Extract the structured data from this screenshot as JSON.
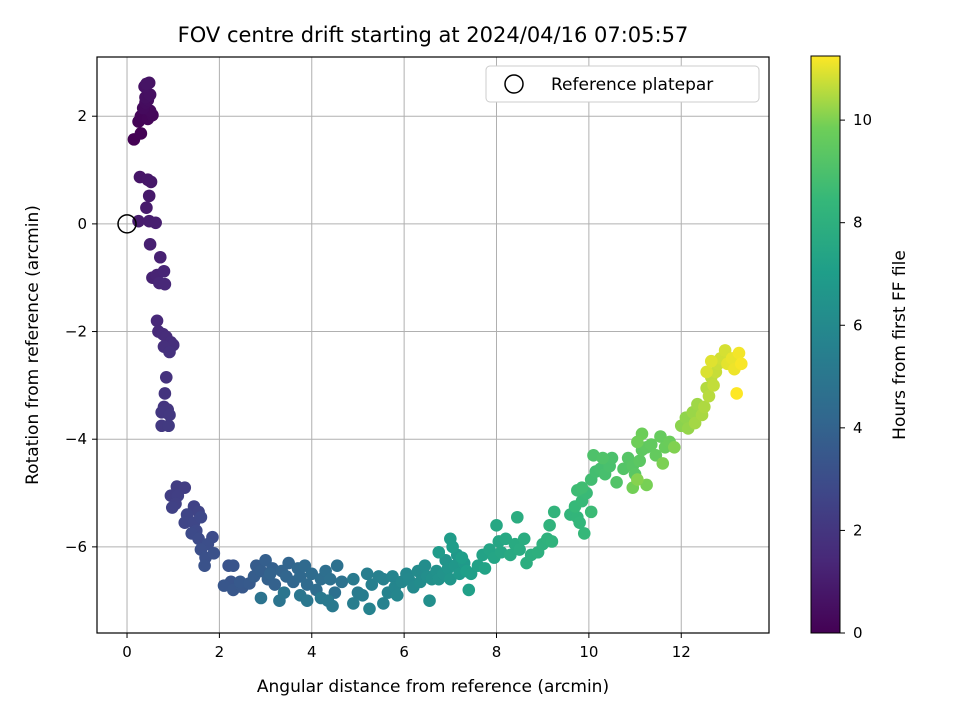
{
  "chart_data": {
    "type": "scatter",
    "title": "FOV centre drift starting at 2024/04/16 07:05:57",
    "xlabel": "Angular distance from reference (arcmin)",
    "ylabel": "Rotation from reference (arcmin)",
    "xlim": [
      -0.65,
      13.9
    ],
    "ylim": [
      -7.6,
      3.1
    ],
    "xticks": [
      0,
      2,
      4,
      6,
      8,
      10,
      12
    ],
    "yticks": [
      -6,
      -4,
      -2,
      0,
      2
    ],
    "grid": true,
    "colormap": "viridis",
    "colorbar": {
      "label": "Hours from first FF file",
      "min": 0,
      "max": 11.25,
      "ticks": [
        0,
        2,
        4,
        6,
        8,
        10
      ]
    },
    "reference": {
      "label": "Reference platepar",
      "x": 0,
      "y": 0,
      "marker": "open-circle"
    },
    "legend": {
      "loc": "upper right",
      "entries": [
        "Reference platepar"
      ]
    },
    "series": [
      {
        "points": [
          [
            0.15,
            1.57
          ],
          [
            0.3,
            1.68
          ],
          [
            0.25,
            1.9
          ],
          [
            0.3,
            2.0
          ],
          [
            0.45,
            1.95
          ],
          [
            0.55,
            2.02
          ],
          [
            0.5,
            2.1
          ],
          [
            0.35,
            2.15
          ],
          [
            0.4,
            2.25
          ],
          [
            0.45,
            2.3
          ],
          [
            0.4,
            2.35
          ],
          [
            0.5,
            2.4
          ],
          [
            0.38,
            2.55
          ],
          [
            0.48,
            2.62
          ],
          [
            0.42,
            2.6
          ],
          [
            0.28,
            0.87
          ],
          [
            0.45,
            0.82
          ],
          [
            0.52,
            0.78
          ],
          [
            0.48,
            0.52
          ],
          [
            0.42,
            0.3
          ],
          [
            0.25,
            0.05
          ],
          [
            0.48,
            0.05
          ],
          [
            0.62,
            0.02
          ],
          [
            0.5,
            -0.38
          ],
          [
            0.72,
            -0.62
          ],
          [
            0.55,
            -1.0
          ],
          [
            0.65,
            -0.95
          ],
          [
            0.8,
            -0.88
          ],
          [
            0.7,
            -1.1
          ],
          [
            0.82,
            -1.12
          ],
          [
            0.65,
            -1.8
          ],
          [
            0.68,
            -2.0
          ],
          [
            0.78,
            -2.05
          ],
          [
            0.85,
            -2.1
          ],
          [
            0.95,
            -2.2
          ],
          [
            1.0,
            -2.25
          ],
          [
            0.8,
            -2.28
          ],
          [
            0.92,
            -2.38
          ],
          [
            0.85,
            -2.85
          ],
          [
            0.82,
            -3.15
          ],
          [
            0.8,
            -3.4
          ],
          [
            0.88,
            -3.45
          ],
          [
            0.75,
            -3.5
          ],
          [
            0.92,
            -3.55
          ],
          [
            0.75,
            -3.75
          ],
          [
            0.9,
            -3.75
          ],
          [
            1.08,
            -4.88
          ],
          [
            1.25,
            -4.9
          ],
          [
            0.95,
            -5.05
          ],
          [
            1.1,
            -5.05
          ],
          [
            1.05,
            -5.2
          ],
          [
            0.98,
            -5.27
          ],
          [
            1.45,
            -5.25
          ],
          [
            1.55,
            -5.35
          ],
          [
            1.3,
            -5.4
          ],
          [
            1.25,
            -5.55
          ],
          [
            1.45,
            -5.55
          ],
          [
            1.6,
            -5.45
          ],
          [
            1.5,
            -5.7
          ],
          [
            1.4,
            -5.75
          ],
          [
            1.55,
            -5.85
          ],
          [
            1.85,
            -5.82
          ],
          [
            1.75,
            -5.95
          ],
          [
            1.6,
            -6.05
          ],
          [
            1.7,
            -6.2
          ],
          [
            1.88,
            -6.12
          ],
          [
            1.68,
            -6.35
          ],
          [
            2.2,
            -6.35
          ],
          [
            2.3,
            -6.35
          ],
          [
            2.25,
            -6.65
          ],
          [
            2.1,
            -6.72
          ],
          [
            2.3,
            -6.8
          ],
          [
            2.5,
            -6.75
          ],
          [
            2.45,
            -6.65
          ],
          [
            2.65,
            -6.68
          ],
          [
            2.8,
            -6.35
          ],
          [
            2.75,
            -6.55
          ],
          [
            2.9,
            -6.45
          ],
          [
            3.0,
            -6.25
          ],
          [
            3.15,
            -6.4
          ],
          [
            3.05,
            -6.6
          ],
          [
            3.2,
            -6.7
          ],
          [
            3.1,
            -6.5
          ],
          [
            3.35,
            -6.45
          ],
          [
            3.5,
            -6.3
          ],
          [
            3.45,
            -6.55
          ],
          [
            3.6,
            -6.65
          ],
          [
            3.7,
            -6.4
          ],
          [
            3.75,
            -6.55
          ],
          [
            3.85,
            -6.35
          ],
          [
            3.9,
            -6.7
          ],
          [
            4.0,
            -6.5
          ],
          [
            4.1,
            -6.8
          ],
          [
            4.2,
            -6.6
          ],
          [
            4.3,
            -6.45
          ],
          [
            4.4,
            -6.6
          ],
          [
            4.5,
            -6.85
          ],
          [
            4.55,
            -6.35
          ],
          [
            4.65,
            -6.65
          ],
          [
            2.9,
            -6.95
          ],
          [
            3.3,
            -7.0
          ],
          [
            3.4,
            -6.85
          ],
          [
            3.75,
            -6.9
          ],
          [
            3.9,
            -7.0
          ],
          [
            4.2,
            -6.95
          ],
          [
            4.35,
            -7.0
          ],
          [
            4.45,
            -7.1
          ],
          [
            4.9,
            -6.6
          ],
          [
            5.0,
            -6.85
          ],
          [
            5.1,
            -6.9
          ],
          [
            4.9,
            -7.05
          ],
          [
            5.2,
            -6.5
          ],
          [
            5.3,
            -6.7
          ],
          [
            5.45,
            -6.55
          ],
          [
            5.55,
            -6.6
          ],
          [
            5.25,
            -7.15
          ],
          [
            5.55,
            -7.05
          ],
          [
            5.65,
            -6.85
          ],
          [
            5.75,
            -6.55
          ],
          [
            5.8,
            -6.75
          ],
          [
            5.85,
            -6.9
          ],
          [
            5.95,
            -6.65
          ],
          [
            6.05,
            -6.5
          ],
          [
            6.1,
            -6.6
          ],
          [
            6.2,
            -6.75
          ],
          [
            6.3,
            -6.45
          ],
          [
            6.35,
            -6.65
          ],
          [
            6.45,
            -6.35
          ],
          [
            6.5,
            -6.55
          ],
          [
            6.55,
            -7.0
          ],
          [
            6.6,
            -6.6
          ],
          [
            6.7,
            -6.45
          ],
          [
            6.75,
            -6.6
          ],
          [
            6.85,
            -6.5
          ],
          [
            6.9,
            -6.25
          ],
          [
            6.95,
            -6.4
          ],
          [
            7.0,
            -6.6
          ],
          [
            7.1,
            -6.35
          ],
          [
            7.15,
            -6.15
          ],
          [
            7.2,
            -6.5
          ],
          [
            7.3,
            -6.3
          ],
          [
            6.75,
            -6.1
          ],
          [
            7.0,
            -5.85
          ],
          [
            7.05,
            -6.0
          ],
          [
            7.25,
            -6.2
          ],
          [
            7.35,
            -6.45
          ],
          [
            7.45,
            -6.5
          ],
          [
            7.4,
            -6.8
          ],
          [
            7.6,
            -6.35
          ],
          [
            7.7,
            -6.15
          ],
          [
            7.75,
            -6.4
          ],
          [
            7.85,
            -6.05
          ],
          [
            7.95,
            -6.2
          ],
          [
            8.05,
            -5.9
          ],
          [
            8.1,
            -6.1
          ],
          [
            8.0,
            -5.6
          ],
          [
            8.2,
            -5.85
          ],
          [
            8.3,
            -6.15
          ],
          [
            8.4,
            -5.95
          ],
          [
            8.5,
            -6.05
          ],
          [
            8.6,
            -5.85
          ],
          [
            8.45,
            -5.45
          ],
          [
            8.65,
            -6.3
          ],
          [
            8.75,
            -6.15
          ],
          [
            8.9,
            -6.1
          ],
          [
            9.0,
            -5.95
          ],
          [
            9.1,
            -5.85
          ],
          [
            9.2,
            -5.9
          ],
          [
            9.15,
            -5.6
          ],
          [
            9.25,
            -5.35
          ],
          [
            9.6,
            -5.4
          ],
          [
            9.75,
            -5.45
          ],
          [
            9.8,
            -5.55
          ],
          [
            9.9,
            -5.75
          ],
          [
            9.7,
            -5.25
          ],
          [
            9.85,
            -5.15
          ],
          [
            9.95,
            -5.0
          ],
          [
            10.05,
            -5.35
          ],
          [
            9.75,
            -4.95
          ],
          [
            9.85,
            -4.9
          ],
          [
            10.05,
            -4.75
          ],
          [
            10.15,
            -4.6
          ],
          [
            10.25,
            -4.55
          ],
          [
            10.35,
            -4.65
          ],
          [
            10.45,
            -4.5
          ],
          [
            10.5,
            -4.35
          ],
          [
            10.1,
            -4.3
          ],
          [
            10.3,
            -4.35
          ],
          [
            10.6,
            -4.8
          ],
          [
            10.75,
            -4.55
          ],
          [
            10.85,
            -4.35
          ],
          [
            10.95,
            -4.5
          ],
          [
            11.0,
            -4.65
          ],
          [
            11.1,
            -4.4
          ],
          [
            11.15,
            -4.2
          ],
          [
            11.25,
            -4.15
          ],
          [
            11.35,
            -4.1
          ],
          [
            11.45,
            -4.3
          ],
          [
            11.55,
            -3.95
          ],
          [
            11.65,
            -4.15
          ],
          [
            11.75,
            -4.05
          ],
          [
            11.15,
            -3.9
          ],
          [
            11.05,
            -4.05
          ],
          [
            10.95,
            -4.9
          ],
          [
            11.25,
            -4.85
          ],
          [
            11.6,
            -4.45
          ],
          [
            11.85,
            -4.15
          ],
          [
            11.05,
            -4.75
          ],
          [
            12.0,
            -3.75
          ],
          [
            12.1,
            -3.6
          ],
          [
            12.15,
            -3.8
          ],
          [
            12.25,
            -3.5
          ],
          [
            12.35,
            -3.35
          ],
          [
            12.3,
            -3.7
          ],
          [
            12.45,
            -3.55
          ],
          [
            12.5,
            -3.4
          ],
          [
            12.55,
            -3.05
          ],
          [
            12.6,
            -3.2
          ],
          [
            12.65,
            -2.85
          ],
          [
            12.7,
            -3.0
          ],
          [
            12.75,
            -2.75
          ],
          [
            12.8,
            -2.6
          ],
          [
            12.85,
            -2.5
          ],
          [
            12.95,
            -2.35
          ],
          [
            12.55,
            -2.75
          ],
          [
            12.65,
            -2.55
          ],
          [
            13.0,
            -2.6
          ],
          [
            13.1,
            -2.5
          ],
          [
            13.15,
            -2.7
          ],
          [
            13.25,
            -2.4
          ],
          [
            13.3,
            -2.6
          ],
          [
            13.2,
            -3.15
          ]
        ]
      }
    ]
  }
}
